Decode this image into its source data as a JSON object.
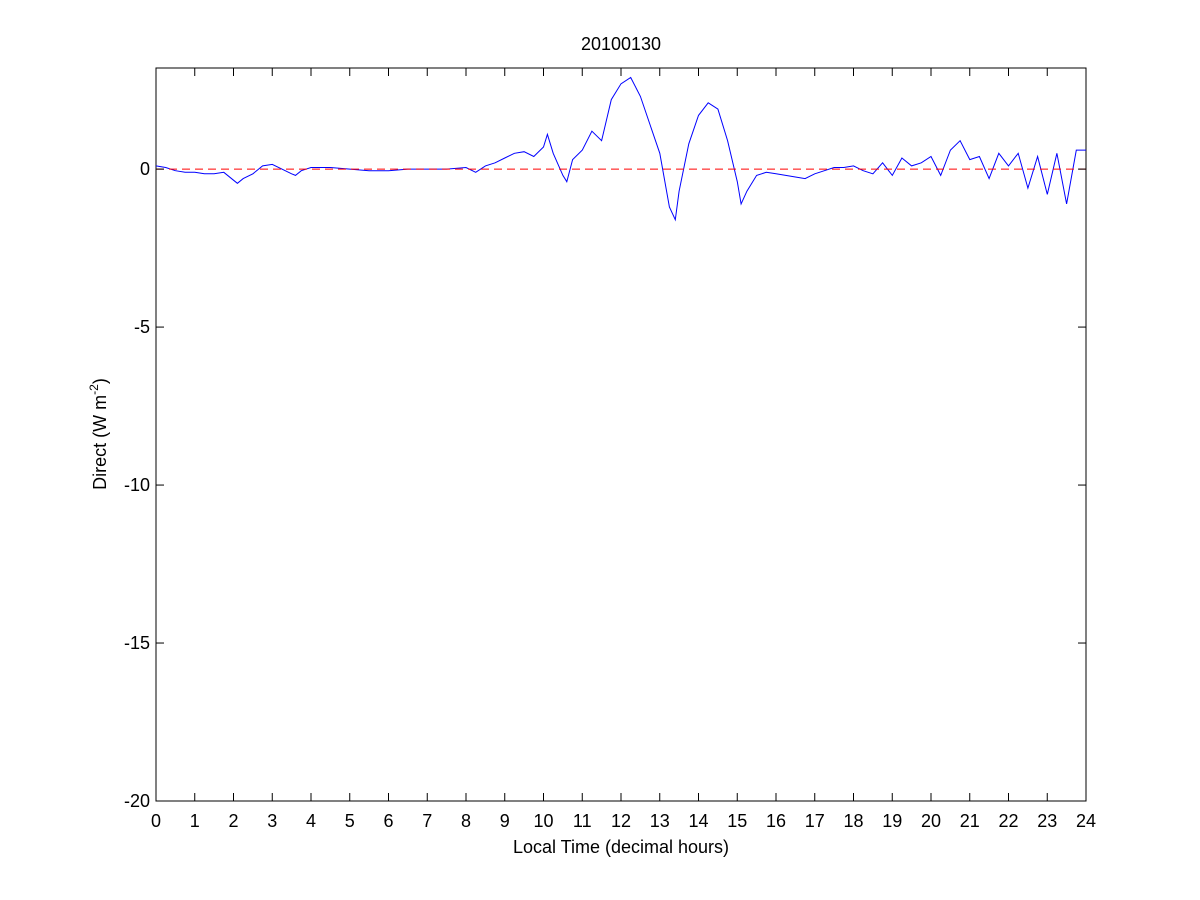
{
  "chart_data": {
    "type": "line",
    "title": "20100130",
    "xlabel": "Local Time (decimal hours)",
    "ylabel": {
      "main": "Direct (W m",
      "superscript": "-2",
      "close": ")"
    },
    "xlim": [
      0,
      24
    ],
    "ylim": [
      -20,
      3.2
    ],
    "xticks": [
      "0",
      "1",
      "2",
      "3",
      "4",
      "5",
      "6",
      "7",
      "8",
      "9",
      "10",
      "11",
      "12",
      "13",
      "14",
      "15",
      "16",
      "17",
      "18",
      "19",
      "20",
      "21",
      "22",
      "23",
      "24"
    ],
    "yticks": [
      "0",
      "-5",
      "-10",
      "-15",
      "-20"
    ],
    "ytick_values": [
      0,
      -5,
      -10,
      -15,
      -20
    ],
    "grid": false,
    "legend": "none",
    "series": [
      {
        "color": "#0000ff",
        "style": "solid",
        "x": [
          0,
          0.25,
          0.5,
          0.75,
          1,
          1.25,
          1.5,
          1.75,
          2,
          2.1,
          2.25,
          2.5,
          2.75,
          3,
          3.25,
          3.5,
          3.6,
          3.75,
          4,
          4.5,
          5,
          5.5,
          6,
          6.5,
          7,
          7.5,
          8,
          8.25,
          8.5,
          8.75,
          9,
          9.25,
          9.5,
          9.75,
          10,
          10.1,
          10.25,
          10.5,
          10.6,
          10.75,
          11,
          11.25,
          11.5,
          11.75,
          12,
          12.25,
          12.5,
          12.75,
          13,
          13.25,
          13.4,
          13.5,
          13.75,
          14,
          14.25,
          14.5,
          14.75,
          15,
          15.1,
          15.25,
          15.5,
          15.75,
          16,
          16.25,
          16.5,
          16.75,
          17,
          17.25,
          17.5,
          17.75,
          18,
          18.25,
          18.5,
          18.75,
          19,
          19.25,
          19.5,
          19.75,
          20,
          20.25,
          20.5,
          20.75,
          21,
          21.25,
          21.5,
          21.75,
          22,
          22.25,
          22.5,
          22.75,
          23,
          23.25,
          23.5,
          23.75,
          24
        ],
        "y": [
          0.1,
          0.05,
          -0.05,
          -0.1,
          -0.1,
          -0.15,
          -0.15,
          -0.1,
          -0.35,
          -0.45,
          -0.3,
          -0.15,
          0.1,
          0.15,
          0,
          -0.15,
          -0.2,
          -0.05,
          0.05,
          0.05,
          0,
          -0.05,
          -0.05,
          0,
          0,
          0,
          0.05,
          -0.1,
          0.1,
          0.2,
          0.35,
          0.5,
          0.55,
          0.4,
          0.7,
          1.1,
          0.5,
          -0.2,
          -0.4,
          0.3,
          0.6,
          1.2,
          0.9,
          2.2,
          2.7,
          2.9,
          2.3,
          1.4,
          0.5,
          -1.2,
          -1.6,
          -0.7,
          0.8,
          1.7,
          2.1,
          1.9,
          0.9,
          -0.4,
          -1.1,
          -0.7,
          -0.2,
          -0.1,
          -0.15,
          -0.2,
          -0.25,
          -0.3,
          -0.15,
          -0.05,
          0.05,
          0.05,
          0.1,
          -0.05,
          -0.15,
          0.2,
          -0.2,
          0.35,
          0.1,
          0.2,
          0.4,
          -0.2,
          0.6,
          0.9,
          0.3,
          0.4,
          -0.3,
          0.5,
          0.1,
          0.5,
          -0.6,
          0.4,
          -0.8,
          0.5,
          -1.1,
          0.6,
          0.6
        ]
      },
      {
        "color": "#ff0000",
        "style": "dashed",
        "x": [
          0,
          24
        ],
        "y": [
          0,
          0
        ]
      }
    ]
  }
}
